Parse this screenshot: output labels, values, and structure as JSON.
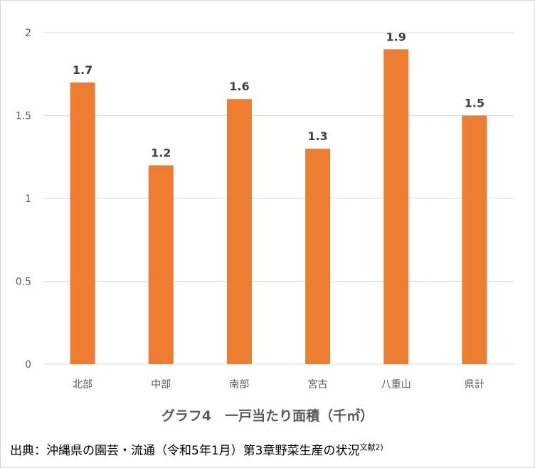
{
  "chart_data": {
    "type": "bar",
    "categories": [
      "北部",
      "中部",
      "南部",
      "宮古",
      "八重山",
      "県計"
    ],
    "values": [
      1.7,
      1.2,
      1.6,
      1.3,
      1.9,
      1.5
    ],
    "data_labels": [
      "1.7",
      "1.2",
      "1.6",
      "1.3",
      "1.9",
      "1.5"
    ],
    "yticks": [
      "0",
      "0.5",
      "1",
      "1.5",
      "2"
    ],
    "ylim": [
      0,
      2
    ],
    "grid": true,
    "bar_color": "#ED7D31",
    "xlabel": "グラフ4　一戸当たり面積（千㎡）",
    "ylabel": "",
    "title": ""
  },
  "source": {
    "text": "出典：沖縄県の園芸・流通（令和5年1月）第3章野菜生産の状況",
    "note": "文献2)"
  }
}
